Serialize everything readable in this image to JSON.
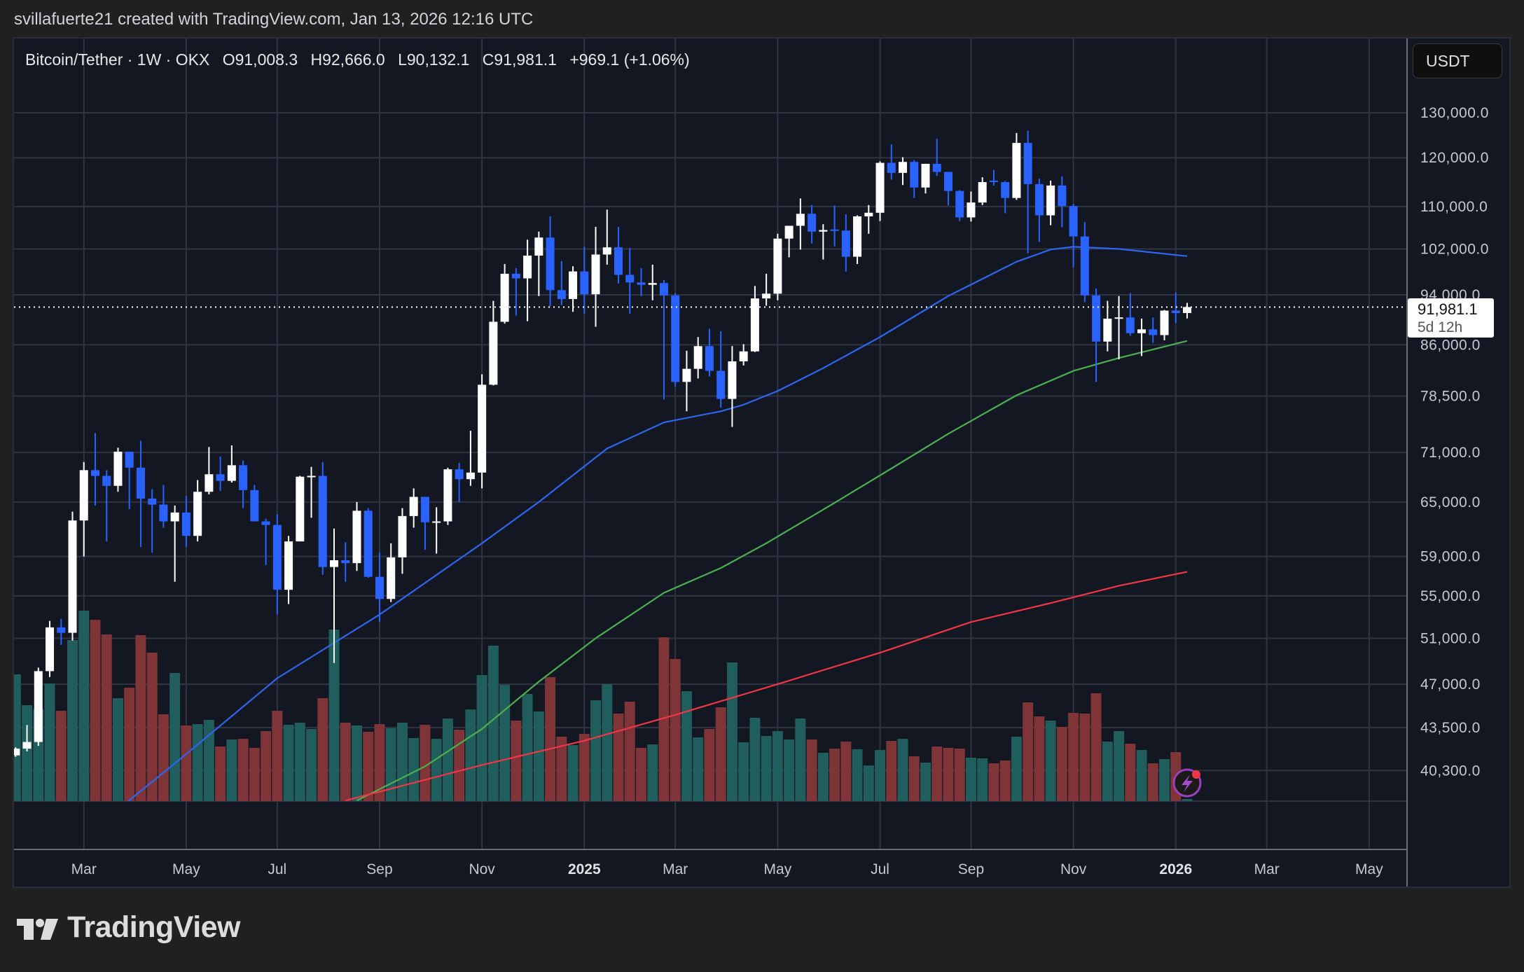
{
  "header": {
    "caption": "svillafuerte21 created with TradingView.com, Jan 13, 2026 12:16 UTC"
  },
  "legend": {
    "symbol": "Bitcoin/Tether · 1W · OKX",
    "ohlc": [
      {
        "label": "O",
        "value": "91,008.3"
      },
      {
        "label": "H",
        "value": "92,666.0"
      },
      {
        "label": "L",
        "value": "90,132.1"
      },
      {
        "label": "C",
        "value": "91,981.1"
      }
    ],
    "change": "+969.1 (+1.06%)"
  },
  "currency_button": "USDT",
  "last_price": {
    "value": "91,981.1",
    "countdown": "5d 12h"
  },
  "brand": {
    "name": "TradingView"
  },
  "icons": {
    "alert": "lightning-icon",
    "logo": "tradingview-logo"
  },
  "colors": {
    "background": "#131722",
    "grid": "#2f3342",
    "up_candle": "#ffffff",
    "down_candle": "#2962ff",
    "up_volume": "#1f5e5c",
    "down_volume": "#7f3438"
  },
  "chart_data": {
    "type": "candlestick",
    "title": "Bitcoin/Tether · 1W · OKX",
    "y_scale": "log",
    "ylim": [
      38200,
      140000
    ],
    "grid": true,
    "price_ticks": [
      "130,000.0",
      "120,000.0",
      "110,000.0",
      "102,000.0",
      "94,000.0",
      "86,000.0",
      "78,500.0",
      "71,000.0",
      "65,000.0",
      "59,000.0",
      "55,000.0",
      "51,000.0",
      "47,000.0",
      "43,500.0",
      "40,300.0"
    ],
    "price_tick_values": [
      130000,
      120000,
      110000,
      102000,
      94000,
      86000,
      78500,
      71000,
      65000,
      59000,
      55000,
      51000,
      47000,
      43500,
      40300
    ],
    "time_ticks": [
      {
        "label": "Mar",
        "date": "2024-03-01",
        "bold": false
      },
      {
        "label": "May",
        "date": "2024-05-01",
        "bold": false
      },
      {
        "label": "Jul",
        "date": "2024-07-01",
        "bold": false
      },
      {
        "label": "Sep",
        "date": "2024-09-01",
        "bold": false
      },
      {
        "label": "Nov",
        "date": "2024-11-01",
        "bold": false
      },
      {
        "label": "2025",
        "date": "2025-01-01",
        "bold": true
      },
      {
        "label": "Mar",
        "date": "2025-03-01",
        "bold": false
      },
      {
        "label": "May",
        "date": "2025-05-01",
        "bold": false
      },
      {
        "label": "Jul",
        "date": "2025-07-01",
        "bold": false
      },
      {
        "label": "Sep",
        "date": "2025-09-01",
        "bold": false
      },
      {
        "label": "Nov",
        "date": "2025-11-01",
        "bold": false
      },
      {
        "label": "2026",
        "date": "2026-01-01",
        "bold": true
      },
      {
        "label": "Mar",
        "date": "2026-03-01",
        "bold": false
      },
      {
        "label": "May",
        "date": "2026-05-01",
        "bold": false
      }
    ],
    "candle_fields": [
      "date",
      "open",
      "high",
      "low",
      "close",
      "volume_relative"
    ],
    "candles": [
      [
        "2024-01-22",
        41400,
        42000,
        41300,
        41900,
        181
      ],
      [
        "2024-01-29",
        41900,
        43700,
        41700,
        42400,
        137
      ],
      [
        "2024-02-05",
        42400,
        48400,
        42100,
        48100,
        131
      ],
      [
        "2024-02-12",
        48100,
        52600,
        47600,
        52000,
        168
      ],
      [
        "2024-02-19",
        52000,
        52800,
        50400,
        51500,
        129
      ],
      [
        "2024-02-26",
        51500,
        63900,
        50800,
        62900,
        230
      ],
      [
        "2024-03-04",
        62900,
        69800,
        59000,
        68800,
        272
      ],
      [
        "2024-03-11",
        68800,
        73500,
        64600,
        68100,
        259
      ],
      [
        "2024-03-18",
        68100,
        68800,
        60600,
        66900,
        238
      ],
      [
        "2024-03-25",
        66900,
        71600,
        66200,
        71100,
        147
      ],
      [
        "2024-04-01",
        71100,
        71100,
        64200,
        69100,
        162
      ],
      [
        "2024-04-08",
        69100,
        72500,
        60000,
        65400,
        237
      ],
      [
        "2024-04-15",
        65400,
        66500,
        59400,
        64700,
        212
      ],
      [
        "2024-04-22",
        64700,
        67000,
        62100,
        62800,
        124
      ],
      [
        "2024-04-29",
        62800,
        64600,
        56400,
        63800,
        183
      ],
      [
        "2024-05-06",
        63800,
        65700,
        60000,
        61200,
        108
      ],
      [
        "2024-05-13",
        61200,
        67600,
        60600,
        66200,
        110
      ],
      [
        "2024-05-20",
        66200,
        71700,
        65900,
        68300,
        116
      ],
      [
        "2024-05-27",
        68300,
        70500,
        66300,
        67500,
        78
      ],
      [
        "2024-06-03",
        67500,
        71900,
        67300,
        69400,
        88
      ],
      [
        "2024-06-10",
        69400,
        70000,
        64300,
        66400,
        89
      ],
      [
        "2024-06-17",
        66400,
        67000,
        62800,
        62800,
        76
      ],
      [
        "2024-06-24",
        62800,
        63100,
        58100,
        62400,
        100
      ],
      [
        "2024-07-01",
        62400,
        63600,
        53200,
        55600,
        129
      ],
      [
        "2024-07-08",
        55600,
        61200,
        54200,
        60600,
        109
      ],
      [
        "2024-07-15",
        60600,
        68100,
        60600,
        68000,
        112
      ],
      [
        "2024-07-22",
        68000,
        69200,
        63200,
        68100,
        103
      ],
      [
        "2024-07-29",
        68100,
        69800,
        57100,
        57900,
        147
      ],
      [
        "2024-08-05",
        57900,
        62000,
        48800,
        58600,
        245
      ],
      [
        "2024-08-12",
        58600,
        60500,
        56400,
        58300,
        112
      ],
      [
        "2024-08-19",
        58300,
        65000,
        57500,
        64000,
        108
      ],
      [
        "2024-08-26",
        64000,
        64300,
        56800,
        56900,
        99
      ],
      [
        "2024-09-02",
        56900,
        59400,
        52500,
        54700,
        110
      ],
      [
        "2024-09-09",
        54700,
        60400,
        54400,
        58900,
        104
      ],
      [
        "2024-09-16",
        58900,
        64300,
        57200,
        63400,
        112
      ],
      [
        "2024-09-23",
        63400,
        66600,
        62100,
        65600,
        90
      ],
      [
        "2024-09-30",
        65600,
        65600,
        59700,
        62700,
        109
      ],
      [
        "2024-10-07",
        62700,
        64400,
        59300,
        62800,
        89
      ],
      [
        "2024-10-14",
        62800,
        69100,
        62400,
        68900,
        118
      ],
      [
        "2024-10-21",
        68900,
        69700,
        65000,
        67700,
        102
      ],
      [
        "2024-10-28",
        67700,
        73800,
        66900,
        68500,
        131
      ],
      [
        "2024-11-04",
        68500,
        81600,
        66600,
        80100,
        180
      ],
      [
        "2024-11-11",
        80100,
        93000,
        80000,
        89600,
        222
      ],
      [
        "2024-11-18",
        89600,
        99300,
        89300,
        97600,
        166
      ],
      [
        "2024-11-25",
        97600,
        98600,
        90600,
        96800,
        115
      ],
      [
        "2024-12-02",
        96800,
        103700,
        89700,
        100800,
        153
      ],
      [
        "2024-12-09",
        100800,
        105200,
        93800,
        104100,
        128
      ],
      [
        "2024-12-16",
        104100,
        108100,
        92100,
        94800,
        177
      ],
      [
        "2024-12-23",
        94800,
        99800,
        92300,
        93300,
        92
      ],
      [
        "2024-12-30",
        93300,
        98900,
        91200,
        98000,
        80
      ],
      [
        "2025-01-06",
        98000,
        102400,
        90900,
        94100,
        96
      ],
      [
        "2025-01-13",
        94100,
        106100,
        88800,
        101000,
        144
      ],
      [
        "2025-01-20",
        101000,
        109400,
        99200,
        102300,
        167
      ],
      [
        "2025-01-27",
        102300,
        106100,
        95900,
        97400,
        125
      ],
      [
        "2025-02-03",
        97400,
        102200,
        90900,
        96100,
        142
      ],
      [
        "2025-02-10",
        96100,
        98600,
        93800,
        95700,
        76
      ],
      [
        "2025-02-17",
        95700,
        99200,
        93100,
        96000,
        81
      ],
      [
        "2025-02-24",
        96000,
        96500,
        78000,
        93900,
        234
      ],
      [
        "2025-03-03",
        93900,
        94300,
        79800,
        80500,
        203
      ],
      [
        "2025-03-10",
        80500,
        85100,
        76400,
        82400,
        157
      ],
      [
        "2025-03-17",
        82400,
        87200,
        81000,
        85800,
        91
      ],
      [
        "2025-03-24",
        85800,
        88500,
        81300,
        82100,
        103
      ],
      [
        "2025-03-31",
        82100,
        88100,
        76900,
        78100,
        134
      ],
      [
        "2025-04-07",
        78100,
        85800,
        74300,
        83500,
        198
      ],
      [
        "2025-04-14",
        83500,
        86100,
        82900,
        85000,
        84
      ],
      [
        "2025-04-21",
        85000,
        95500,
        84900,
        93400,
        119
      ],
      [
        "2025-04-28",
        93400,
        97600,
        92200,
        94200,
        93
      ],
      [
        "2025-05-05",
        94200,
        104800,
        93100,
        103900,
        100
      ],
      [
        "2025-05-12",
        103900,
        106300,
        100500,
        106300,
        88
      ],
      [
        "2025-05-19",
        106300,
        111600,
        101900,
        108600,
        118
      ],
      [
        "2025-05-26",
        108600,
        110300,
        103000,
        105200,
        88
      ],
      [
        "2025-06-02",
        105200,
        106600,
        100100,
        105500,
        69
      ],
      [
        "2025-06-09",
        105600,
        110200,
        102500,
        105400,
        75
      ],
      [
        "2025-06-16",
        105400,
        108500,
        98000,
        100600,
        85
      ],
      [
        "2025-06-23",
        100600,
        108300,
        99300,
        108100,
        74
      ],
      [
        "2025-06-30",
        108100,
        110300,
        104800,
        108800,
        51
      ],
      [
        "2025-07-07",
        108800,
        119200,
        107200,
        118900,
        73
      ],
      [
        "2025-07-14",
        118900,
        122900,
        115400,
        116800,
        86
      ],
      [
        "2025-07-21",
        116800,
        120100,
        114300,
        119100,
        89
      ],
      [
        "2025-07-28",
        119100,
        119500,
        111700,
        113800,
        64
      ],
      [
        "2025-08-04",
        113800,
        118700,
        112600,
        118700,
        55
      ],
      [
        "2025-08-11",
        118700,
        124100,
        116200,
        117000,
        78
      ],
      [
        "2025-08-18",
        117000,
        117000,
        110200,
        113100,
        76
      ],
      [
        "2025-08-25",
        113100,
        113300,
        107200,
        107900,
        75
      ],
      [
        "2025-09-01",
        107900,
        113000,
        107100,
        110800,
        62
      ],
      [
        "2025-09-08",
        110800,
        115900,
        110300,
        114900,
        61
      ],
      [
        "2025-09-15",
        115200,
        117400,
        114200,
        114900,
        54
      ],
      [
        "2025-09-22",
        114900,
        115100,
        108700,
        111700,
        58
      ],
      [
        "2025-09-29",
        111700,
        125400,
        111300,
        123200,
        92
      ],
      [
        "2025-10-06",
        123200,
        125900,
        101200,
        114500,
        141
      ],
      [
        "2025-10-13",
        114500,
        115600,
        103300,
        108300,
        121
      ],
      [
        "2025-10-20",
        108300,
        115200,
        106400,
        114200,
        115
      ],
      [
        "2025-10-27",
        114200,
        116100,
        106000,
        110100,
        106
      ],
      [
        "2025-11-03",
        110100,
        110500,
        98700,
        104300,
        126
      ],
      [
        "2025-11-10",
        104300,
        107000,
        92800,
        93900,
        125
      ],
      [
        "2025-11-17",
        93900,
        95100,
        80500,
        86500,
        154
      ],
      [
        "2025-11-24",
        86500,
        93000,
        85000,
        90100,
        85
      ],
      [
        "2025-12-01",
        90100,
        93800,
        83800,
        90300,
        100
      ],
      [
        "2025-12-08",
        90300,
        94300,
        87400,
        87800,
        82
      ],
      [
        "2025-12-15",
        87800,
        90100,
        84300,
        88400,
        73
      ],
      [
        "2025-12-22",
        88400,
        90300,
        86300,
        87500,
        54
      ],
      [
        "2025-12-29",
        87500,
        91500,
        86700,
        91400,
        60
      ],
      [
        "2026-01-05",
        91400,
        94400,
        89400,
        91008.3,
        70
      ],
      [
        "2026-01-12",
        91008.3,
        92666.0,
        90132.1,
        91981.1,
        3
      ]
    ],
    "moving_averages": [
      {
        "color": "#2e66f0",
        "points": [
          [
            "2024-03-25",
            37600
          ],
          [
            "2024-05-06",
            41500
          ],
          [
            "2024-07-01",
            47500
          ],
          [
            "2024-09-02",
            53200
          ],
          [
            "2024-11-04",
            60400
          ],
          [
            "2024-12-09",
            65000
          ],
          [
            "2025-01-20",
            71500
          ],
          [
            "2025-02-24",
            74900
          ],
          [
            "2025-03-31",
            76400
          ],
          [
            "2025-04-14",
            77300
          ],
          [
            "2025-05-05",
            79200
          ],
          [
            "2025-06-02",
            82500
          ],
          [
            "2025-07-07",
            87200
          ],
          [
            "2025-08-18",
            93800
          ],
          [
            "2025-09-29",
            99700
          ],
          [
            "2025-10-20",
            101900
          ],
          [
            "2025-11-03",
            102400
          ],
          [
            "2025-12-01",
            102000
          ],
          [
            "2026-01-12",
            100700
          ]
        ]
      },
      {
        "color": "#4caf50",
        "points": [
          [
            "2024-08-19",
            38200
          ],
          [
            "2024-09-30",
            40600
          ],
          [
            "2024-11-04",
            43400
          ],
          [
            "2024-12-09",
            47200
          ],
          [
            "2025-01-13",
            51000
          ],
          [
            "2025-02-24",
            55300
          ],
          [
            "2025-03-31",
            57800
          ],
          [
            "2025-04-28",
            60400
          ],
          [
            "2025-06-09",
            64900
          ],
          [
            "2025-07-14",
            69000
          ],
          [
            "2025-08-18",
            73400
          ],
          [
            "2025-09-29",
            78600
          ],
          [
            "2025-11-03",
            82100
          ],
          [
            "2025-12-01",
            84000
          ],
          [
            "2026-01-12",
            86600
          ]
        ]
      },
      {
        "color": "#f23645",
        "points": [
          [
            "2024-08-12",
            38200
          ],
          [
            "2024-11-04",
            40700
          ],
          [
            "2025-01-06",
            42500
          ],
          [
            "2025-03-03",
            44500
          ],
          [
            "2025-05-05",
            47000
          ],
          [
            "2025-07-07",
            49700
          ],
          [
            "2025-09-01",
            52500
          ],
          [
            "2025-10-20",
            54300
          ],
          [
            "2025-12-01",
            56000
          ],
          [
            "2026-01-12",
            57400
          ]
        ]
      }
    ]
  }
}
